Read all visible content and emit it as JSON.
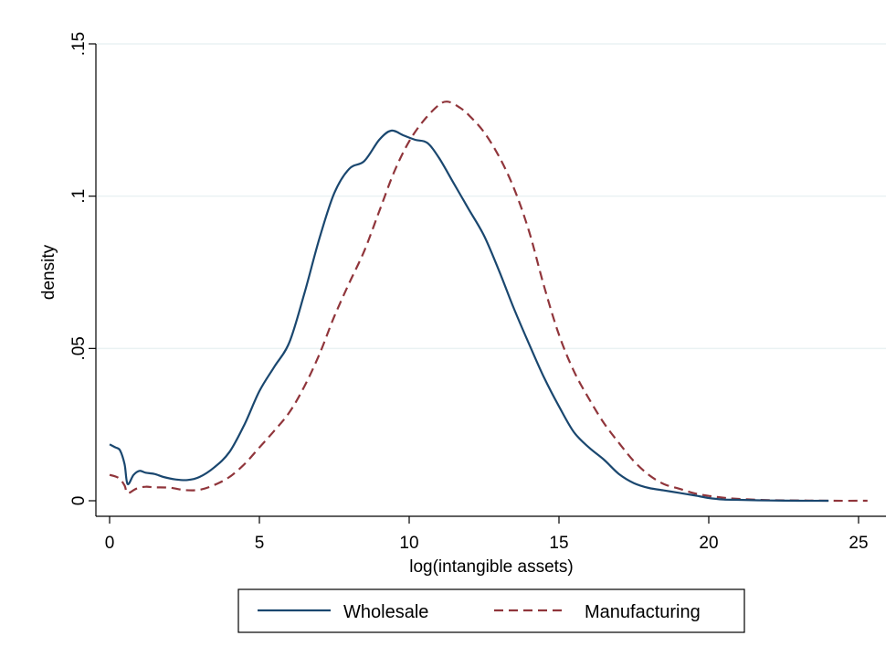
{
  "chart_data": {
    "type": "line",
    "title": "",
    "xlabel": "log(intangible assets)",
    "ylabel": "density",
    "xlim": [
      0,
      25.5
    ],
    "ylim": [
      0,
      0.15
    ],
    "x_ticks": [
      0,
      5,
      10,
      15,
      20,
      25
    ],
    "x_tick_labels": [
      "0",
      "5",
      "10",
      "15",
      "20",
      "25"
    ],
    "y_ticks": [
      0,
      0.05,
      0.1,
      0.15
    ],
    "y_tick_labels": [
      "0",
      ".05",
      ".1",
      ".15"
    ],
    "grid": "horizontal",
    "legend_position": "bottom",
    "series": [
      {
        "name": "Wholesale",
        "color": "#1a476f",
        "dash": "solid",
        "points": [
          [
            0,
            0.0185
          ],
          [
            0.2,
            0.0175
          ],
          [
            0.35,
            0.0165
          ],
          [
            0.5,
            0.012
          ],
          [
            0.6,
            0.0055
          ],
          [
            0.8,
            0.0085
          ],
          [
            1.0,
            0.0098
          ],
          [
            1.2,
            0.0092
          ],
          [
            1.5,
            0.0088
          ],
          [
            1.8,
            0.0078
          ],
          [
            2.2,
            0.007
          ],
          [
            2.6,
            0.0068
          ],
          [
            3.0,
            0.0078
          ],
          [
            3.5,
            0.011
          ],
          [
            4.0,
            0.016
          ],
          [
            4.5,
            0.025
          ],
          [
            5.0,
            0.036
          ],
          [
            5.5,
            0.044
          ],
          [
            6.0,
            0.052
          ],
          [
            6.5,
            0.068
          ],
          [
            7.0,
            0.086
          ],
          [
            7.5,
            0.101
          ],
          [
            8.0,
            0.109
          ],
          [
            8.5,
            0.1115
          ],
          [
            9.0,
            0.1185
          ],
          [
            9.4,
            0.1215
          ],
          [
            9.8,
            0.12
          ],
          [
            10.2,
            0.1185
          ],
          [
            10.6,
            0.1175
          ],
          [
            11.0,
            0.1125
          ],
          [
            11.5,
            0.104
          ],
          [
            12.0,
            0.0955
          ],
          [
            12.5,
            0.087
          ],
          [
            13.0,
            0.0755
          ],
          [
            13.5,
            0.063
          ],
          [
            14.0,
            0.0515
          ],
          [
            14.5,
            0.0405
          ],
          [
            15.0,
            0.031
          ],
          [
            15.5,
            0.0225
          ],
          [
            16.0,
            0.0175
          ],
          [
            16.5,
            0.0135
          ],
          [
            17.0,
            0.0088
          ],
          [
            17.5,
            0.0058
          ],
          [
            18.0,
            0.0042
          ],
          [
            18.5,
            0.0034
          ],
          [
            19.0,
            0.0026
          ],
          [
            19.5,
            0.0018
          ],
          [
            20.0,
            0.0009
          ],
          [
            20.5,
            0.0004
          ],
          [
            21.0,
            0.0003
          ],
          [
            22.0,
            0.0001
          ],
          [
            23.0,
            0.0
          ],
          [
            24.0,
            0.0
          ]
        ]
      },
      {
        "name": "Manufacturing",
        "color": "#90353b",
        "dash": "dashed",
        "points": [
          [
            0,
            0.0085
          ],
          [
            0.3,
            0.0075
          ],
          [
            0.5,
            0.005
          ],
          [
            0.6,
            0.0025
          ],
          [
            0.9,
            0.004
          ],
          [
            1.2,
            0.0046
          ],
          [
            1.5,
            0.0044
          ],
          [
            2.0,
            0.0043
          ],
          [
            2.5,
            0.0035
          ],
          [
            3.0,
            0.0036
          ],
          [
            3.5,
            0.0052
          ],
          [
            4.0,
            0.0078
          ],
          [
            4.5,
            0.012
          ],
          [
            5.0,
            0.0175
          ],
          [
            5.5,
            0.023
          ],
          [
            6.0,
            0.029
          ],
          [
            6.5,
            0.0375
          ],
          [
            7.0,
            0.048
          ],
          [
            7.5,
            0.0605
          ],
          [
            8.0,
            0.0715
          ],
          [
            8.5,
            0.082
          ],
          [
            9.0,
            0.095
          ],
          [
            9.5,
            0.108
          ],
          [
            10.0,
            0.118
          ],
          [
            10.5,
            0.125
          ],
          [
            11.0,
            0.13
          ],
          [
            11.3,
            0.131
          ],
          [
            11.7,
            0.129
          ],
          [
            12.0,
            0.1265
          ],
          [
            12.5,
            0.121
          ],
          [
            13.0,
            0.113
          ],
          [
            13.5,
            0.1025
          ],
          [
            14.0,
            0.0885
          ],
          [
            14.5,
            0.0705
          ],
          [
            15.0,
            0.0545
          ],
          [
            15.5,
            0.0425
          ],
          [
            16.0,
            0.0335
          ],
          [
            16.5,
            0.0255
          ],
          [
            17.0,
            0.019
          ],
          [
            17.5,
            0.013
          ],
          [
            18.0,
            0.0085
          ],
          [
            18.5,
            0.0055
          ],
          [
            19.0,
            0.004
          ],
          [
            19.5,
            0.0025
          ],
          [
            20.0,
            0.0016
          ],
          [
            20.5,
            0.001
          ],
          [
            21.0,
            0.0006
          ],
          [
            22.0,
            0.0002
          ],
          [
            23.0,
            0.0001
          ],
          [
            24.0,
            0.0
          ],
          [
            25.3,
            0.0
          ]
        ]
      }
    ]
  }
}
